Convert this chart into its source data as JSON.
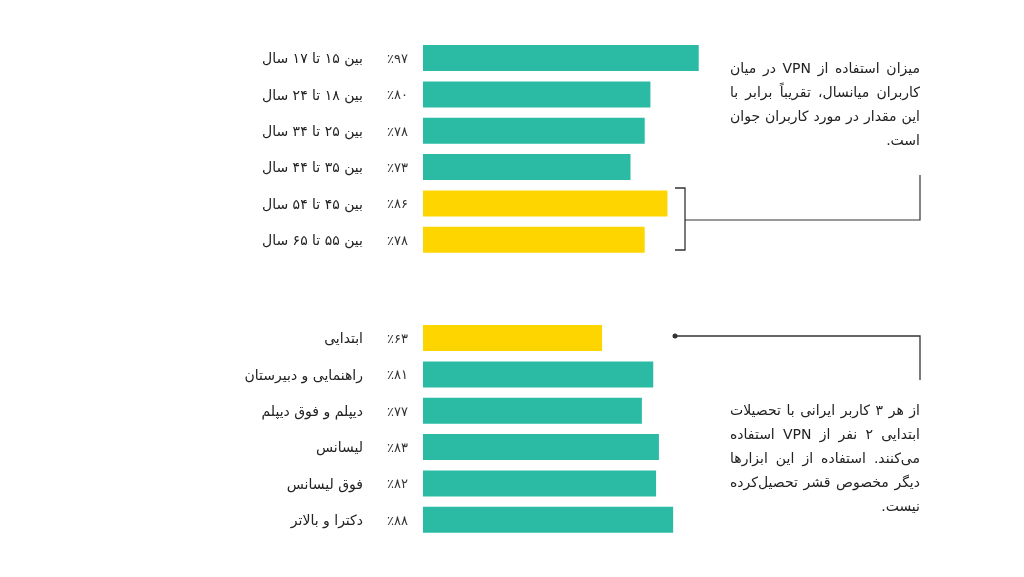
{
  "chart_data": [
    {
      "type": "bar",
      "orientation": "horizontal",
      "categories": [
        "بین ۱۵ تا ۱۷ سال",
        "بین ۱۸ تا ۲۴ سال",
        "بین ۲۵ تا ۳۴ سال",
        "بین ۳۵ تا ۴۴ سال",
        "بین ۴۵ تا ۵۴ سال",
        "بین ۵۵ تا ۶۵ سال"
      ],
      "values": [
        97,
        80,
        78,
        73,
        86,
        78
      ],
      "colors": [
        "#2bbba4",
        "#2bbba4",
        "#2bbba4",
        "#2bbba4",
        "#ffd500",
        "#ffd500"
      ],
      "value_labels": [
        "٪۹۷",
        "٪۸۰",
        "٪۷۸",
        "٪۷۳",
        "٪۸۶",
        "٪۷۸"
      ],
      "annotations": [
        "میزان استفاده از VPN در میان کاربران میانسال، تقریباً برابر با این مقدار در مورد کاربران جوان است."
      ]
    },
    {
      "type": "bar",
      "orientation": "horizontal",
      "categories": [
        "ابتدایی",
        "راهنمایی و دبیرستان",
        "دیپلم و فوق دیپلم",
        "لیسانس",
        "فوق لیسانس",
        "دکترا و بالاتر"
      ],
      "values": [
        63,
        81,
        77,
        83,
        82,
        88
      ],
      "colors": [
        "#ffd500",
        "#2bbba4",
        "#2bbba4",
        "#2bbba4",
        "#2bbba4",
        "#2bbba4"
      ],
      "value_labels": [
        "٪۶۳",
        "٪۸۱",
        "٪۷۷",
        "٪۸۳",
        "٪۸۲",
        "٪۸۸"
      ],
      "annotations": [
        "از هر ۳ کاربر ایرانی با تحصیلات ابتدایی ۲ نفر از VPN استفاده می‌کنند. استفاده از این ابزارها دیگر مخصوص قشر تحصیل‌کرده نیست."
      ]
    }
  ]
}
